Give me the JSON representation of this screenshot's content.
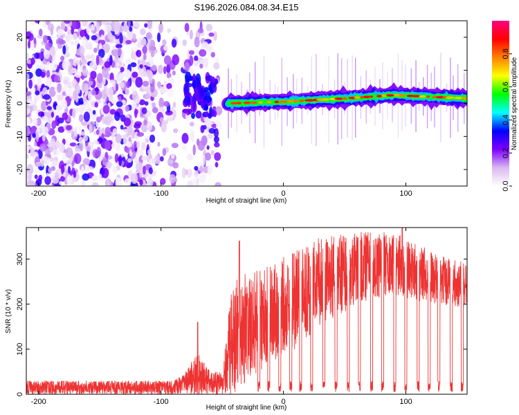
{
  "page": {
    "title": "S196.2026.084.08.34.E15"
  },
  "chart_data": [
    {
      "type": "heatmap",
      "name": "spectrogram",
      "title": "S196.2026.084.08.34.E15",
      "xlabel": "Height of straight line (km)",
      "ylabel": "Frequency (Hz)",
      "xlim": [
        -210,
        150
      ],
      "ylim": [
        -25,
        25
      ],
      "xticks": [
        -200,
        -100,
        0,
        100
      ],
      "yticks": [
        -20,
        -10,
        0,
        10,
        20
      ],
      "colorbar": {
        "label": "Normalized spectral amplitude",
        "range": [
          0,
          1
        ],
        "ticks": [
          0.0,
          0.2,
          0.4,
          0.6,
          0.8
        ],
        "tick_labels": [
          "0.0",
          "0.2",
          "0.4",
          "0.6",
          "0.8"
        ],
        "colors": [
          "#ffffff",
          "#d9b8f0",
          "#7e00ff",
          "#0000ff",
          "#00ffff",
          "#00ff00",
          "#ffff00",
          "#ff8000",
          "#ff0000",
          "#ff0080"
        ]
      },
      "features": {
        "noise_region_km": [
          -210,
          -52
        ],
        "noise_gap_km": [
          -88,
          -82
        ],
        "noise_dense_until_km": -105,
        "signal_start_km": -45,
        "signal_trend_hz": [
          [
            -45,
            0
          ],
          [
            0,
            0.5
          ],
          [
            50,
            1.5
          ],
          [
            90,
            2.5
          ],
          [
            150,
            1.5
          ]
        ],
        "transition_blob_km": [
          -80,
          -55
        ]
      }
    },
    {
      "type": "line",
      "name": "snr",
      "xlabel": "Height of straight line (km)",
      "ylabel": "SNR (10 * v/v)",
      "xlim": [
        -210,
        150
      ],
      "ylim": [
        0,
        370
      ],
      "xticks": [
        -200,
        -100,
        0,
        100
      ],
      "yticks": [
        0,
        100,
        200,
        300
      ],
      "color": "#ee3333",
      "envelope": [
        {
          "x": -210,
          "base": 15,
          "amp": 15
        },
        {
          "x": -90,
          "base": 15,
          "amp": 15
        },
        {
          "x": -80,
          "base": 25,
          "amp": 25
        },
        {
          "x": -70,
          "base": 45,
          "amp": 50
        },
        {
          "x": -60,
          "base": 25,
          "amp": 25
        },
        {
          "x": -50,
          "base": 25,
          "amp": 25
        },
        {
          "x": -42,
          "base": 120,
          "amp": 130
        },
        {
          "x": -30,
          "base": 150,
          "amp": 120
        },
        {
          "x": -10,
          "base": 180,
          "amp": 110
        },
        {
          "x": 10,
          "base": 210,
          "amp": 110
        },
        {
          "x": 30,
          "base": 250,
          "amp": 100
        },
        {
          "x": 60,
          "base": 280,
          "amp": 80
        },
        {
          "x": 90,
          "base": 290,
          "amp": 70
        },
        {
          "x": 120,
          "base": 260,
          "amp": 60
        },
        {
          "x": 150,
          "base": 240,
          "amp": 50
        }
      ],
      "spikes": [
        {
          "x": -70,
          "y": 160
        },
        {
          "x": -36,
          "y": 340
        },
        {
          "x": 97,
          "y": 370
        }
      ],
      "dropouts_km": [
        -20,
        -12,
        -3,
        6,
        14,
        23,
        33,
        43,
        53,
        62,
        72,
        81,
        91,
        100,
        110,
        119,
        127,
        137,
        146
      ]
    }
  ]
}
